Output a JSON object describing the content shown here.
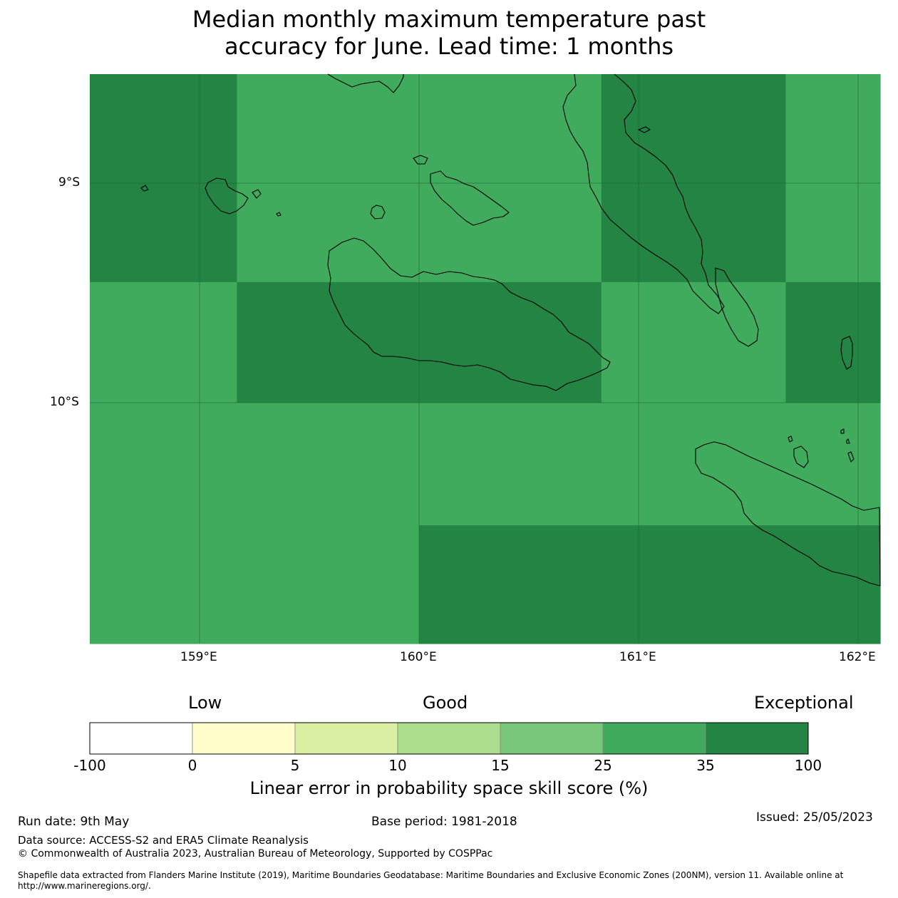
{
  "title": {
    "line1": "Median monthly maximum temperature past",
    "line2": "accuracy for June. Lead time: 1 months"
  },
  "map": {
    "lat_labels": [
      "9°S",
      "10°S"
    ],
    "lon_labels": [
      "159°E",
      "160°E",
      "161°E",
      "162°E"
    ],
    "colors": {
      "skill_25_35": "#41ab5d",
      "skill_35_100": "#238443",
      "coastline": "#000000"
    },
    "grid_cells": [
      {
        "lon": [
          158.5,
          159.17
        ],
        "lat": [
          -8.5,
          -9.45
        ],
        "category": "35-100"
      },
      {
        "lon": [
          159.17,
          160.83
        ],
        "lat": [
          -8.5,
          -9.45
        ],
        "category": "25-35"
      },
      {
        "lon": [
          160.83,
          161.67
        ],
        "lat": [
          -8.5,
          -9.45
        ],
        "category": "35-100"
      },
      {
        "lon": [
          161.67,
          162.1
        ],
        "lat": [
          -8.5,
          -9.45
        ],
        "category": "25-35"
      },
      {
        "lon": [
          158.5,
          159.17
        ],
        "lat": [
          -9.45,
          -10.0
        ],
        "category": "25-35"
      },
      {
        "lon": [
          159.17,
          160.83
        ],
        "lat": [
          -9.45,
          -10.0
        ],
        "category": "35-100"
      },
      {
        "lon": [
          160.83,
          161.67
        ],
        "lat": [
          -9.45,
          -10.0
        ],
        "category": "25-35"
      },
      {
        "lon": [
          161.67,
          162.1
        ],
        "lat": [
          -9.45,
          -10.0
        ],
        "category": "35-100"
      },
      {
        "lon": [
          158.5,
          160.0
        ],
        "lat": [
          -10.0,
          -11.1
        ],
        "category": "25-35"
      },
      {
        "lon": [
          160.0,
          162.1
        ],
        "lat": [
          -10.0,
          -10.56
        ],
        "category": "25-35"
      },
      {
        "lon": [
          160.0,
          162.1
        ],
        "lat": [
          -10.56,
          -11.1
        ],
        "category": "35-100"
      }
    ]
  },
  "colorbar": {
    "categories": [
      "Low",
      "Good",
      "Exceptional"
    ],
    "ticks": [
      "-100",
      "0",
      "5",
      "10",
      "15",
      "25",
      "35",
      "100"
    ],
    "colors": [
      "#ffffff",
      "#ffffcc",
      "#d9f0a3",
      "#addd8e",
      "#78c679",
      "#41ab5d",
      "#238443"
    ],
    "label": "Linear error in probability space skill score (%)"
  },
  "footer": {
    "run_date": "Run date: 9th May",
    "base_period": "Base period: 1981-2018",
    "issued": "Issued: 25/05/2023",
    "data_source": "Data source: ACCESS-S2 and ERA5 Climate Reanalysis",
    "copyright": "© Commonwealth of Australia 2023, Australian Bureau of Meteorology, Supported by COSPPac",
    "shapefile_line1": "Shapefile data extracted from Flanders Marine Institute (2019), Maritime Boundaries Geodatabase: Maritime Boundaries and Exclusive Economic Zones (200NM), version 11. Available online at",
    "shapefile_line2": "http://www.marineregions.org/."
  }
}
